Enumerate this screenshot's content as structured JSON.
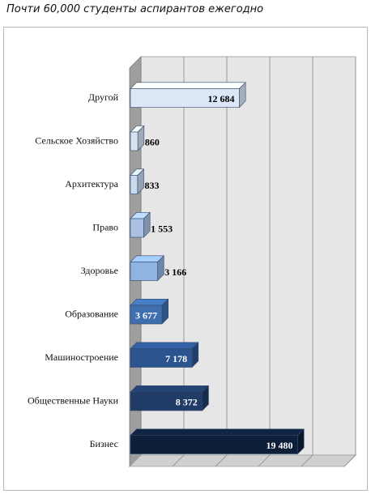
{
  "title": "Почти 60,000 студенты аспирантов ежегодно",
  "chart_data": {
    "type": "bar",
    "orientation": "horizontal",
    "title": "Почти 60,000 студенты аспирантов ежегодно",
    "categories": [
      "Бизнес",
      "Общественные Науки",
      "Машиностроение",
      "Образование",
      "Здоровье",
      "Право",
      "Архитектура",
      "Сельское Хозяйство",
      "Другой"
    ],
    "values": [
      19480,
      8372,
      7178,
      3677,
      3166,
      1553,
      833,
      860,
      12684
    ],
    "labels": [
      "19 480",
      "8 372",
      "7 178",
      "3 677",
      "3 166",
      "1 553",
      "833",
      "860",
      "12 684"
    ],
    "colors": [
      "#0e1f3a",
      "#1f3b66",
      "#2c5490",
      "#3f6fae",
      "#8fb4e2",
      "#a9c2e4",
      "#c9d9ee",
      "#d6e2f2",
      "#dce8f7"
    ],
    "label_colors": [
      "#ffffff",
      "#ffffff",
      "#ffffff",
      "#ffffff",
      "#000000",
      "#000000",
      "#000000",
      "#000000",
      "#000000"
    ],
    "xlim": [
      0,
      25000
    ],
    "grid": true,
    "style": "3d"
  }
}
